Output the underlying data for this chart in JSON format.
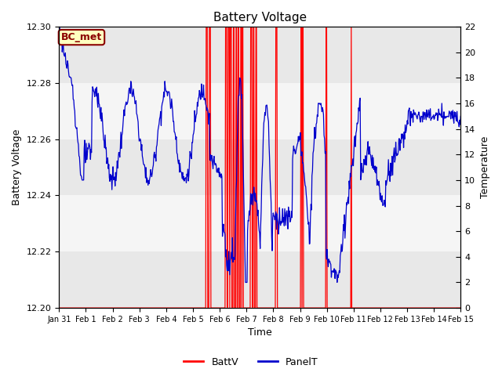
{
  "title": "Battery Voltage",
  "xlabel": "Time",
  "ylabel_left": "Battery Voltage",
  "ylabel_right": "Temperature",
  "ylim_left": [
    12.2,
    12.3
  ],
  "ylim_right": [
    0,
    22
  ],
  "yticks_left": [
    12.2,
    12.22,
    12.24,
    12.26,
    12.28,
    12.3
  ],
  "yticks_right": [
    0,
    2,
    4,
    6,
    8,
    10,
    12,
    14,
    16,
    18,
    20,
    22
  ],
  "xtick_labels": [
    "Jan 31",
    "Feb 1",
    "Feb 2",
    "Feb 3",
    "Feb 4",
    "Feb 5",
    "Feb 6",
    "Feb 7",
    "Feb 8",
    "Feb 9",
    "Feb 10",
    "Feb 11",
    "Feb 12",
    "Feb 13",
    "Feb 14",
    "Feb 15"
  ],
  "xlim": [
    0,
    16
  ],
  "background_color": "#ffffff",
  "plot_bg_color": "#e8e8e8",
  "band_light_color": "#f5f5f5",
  "annotation_label": "BC_met",
  "annotation_color": "#8B0000",
  "annotation_bg": "#ffffc0",
  "line_battv_color": "#ff0000",
  "line_panelt_color": "#0000cc",
  "legend_battv": "BattV",
  "legend_panelt": "PanelT",
  "title_fontsize": 11,
  "axis_label_fontsize": 9,
  "tick_fontsize": 8,
  "xtick_fontsize": 7,
  "annotation_fontsize": 9,
  "spike_regions": [
    [
      5.85,
      5.92
    ],
    [
      5.97,
      6.03
    ],
    [
      6.62,
      6.68
    ],
    [
      6.72,
      6.78
    ],
    [
      6.82,
      6.87
    ],
    [
      6.93,
      6.98
    ],
    [
      7.03,
      7.08
    ],
    [
      7.13,
      7.17
    ],
    [
      7.22,
      7.26
    ],
    [
      7.3,
      7.34
    ],
    [
      7.62,
      7.68
    ],
    [
      7.73,
      7.78
    ],
    [
      7.83,
      7.88
    ],
    [
      8.62,
      8.68
    ],
    [
      9.62,
      9.66
    ],
    [
      9.7,
      9.74
    ],
    [
      10.62,
      10.66
    ],
    [
      11.62,
      11.66
    ]
  ]
}
